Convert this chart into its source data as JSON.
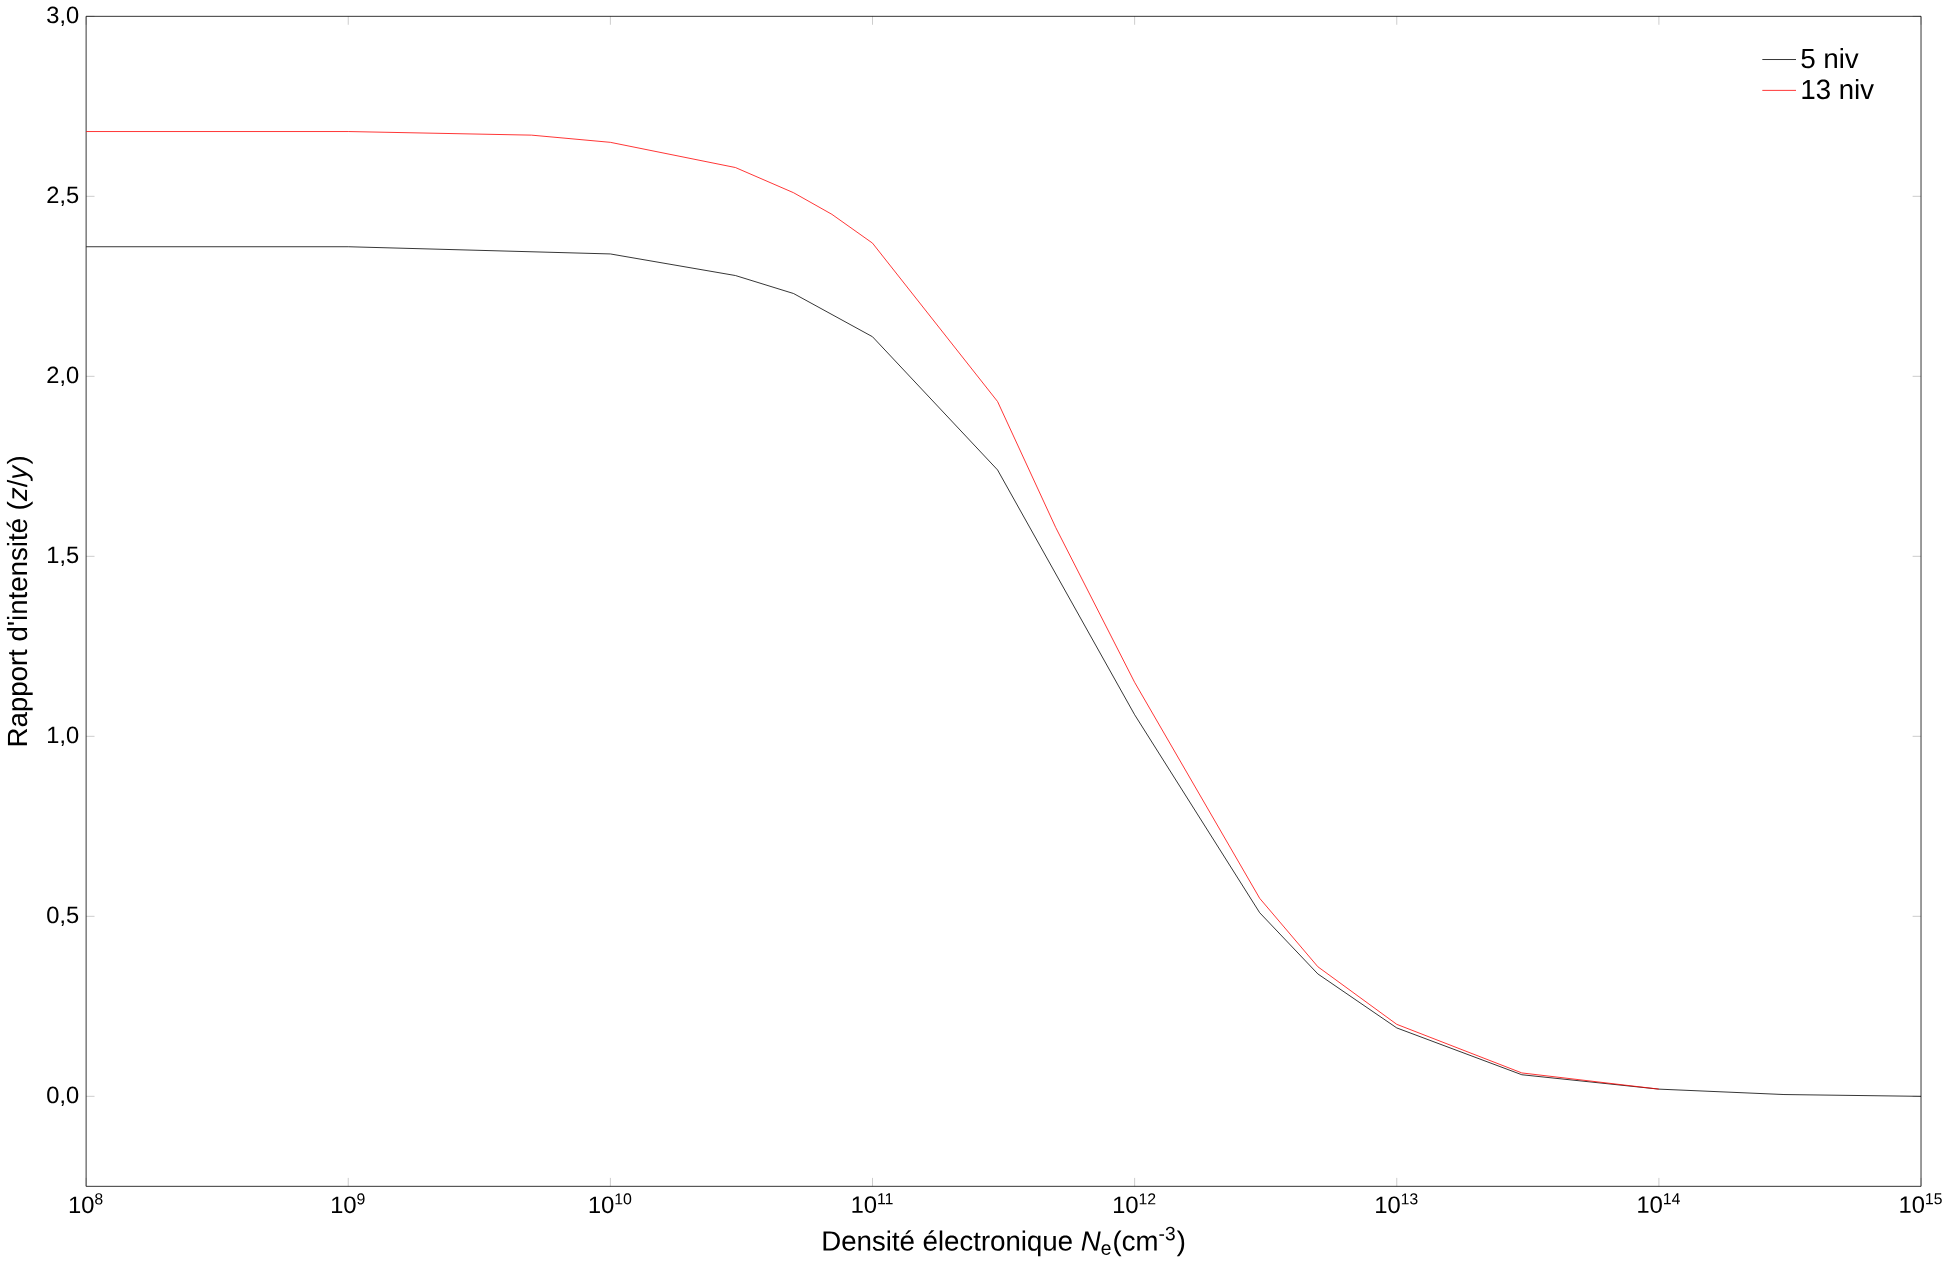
{
  "chart_data": {
    "type": "line",
    "xlabel": "Densité électronique *N*$_{e}$(cm$^{-3}$)",
    "ylabel": "Rapport d'intensité (*z*/*y*)",
    "log": "x",
    "grid": false,
    "legend": "top right",
    "marker": "none",
    "line_style": "solid",
    "xlim": [
      100000000.0,
      1000000000000000.0
    ],
    "ylim": [
      -0.25,
      3.0
    ],
    "xticks": [
      {
        "value": 100000000.0,
        "label": "10$^{8}$"
      },
      {
        "value": 1000000000.0,
        "label": "10$^{9}$"
      },
      {
        "value": 10000000000.0,
        "label": "10$^{10}$"
      },
      {
        "value": 100000000000.0,
        "label": "10$^{11}$"
      },
      {
        "value": 1000000000000.0,
        "label": "10$^{12}$"
      },
      {
        "value": 10000000000000.0,
        "label": "10$^{13}$"
      },
      {
        "value": 100000000000000.0,
        "label": "10$^{14}$"
      },
      {
        "value": 1000000000000000.0,
        "label": "10$^{15}$"
      }
    ],
    "yticks": [
      {
        "value": 0,
        "label": "0,0"
      },
      {
        "value": 0.5,
        "label": "0,5"
      },
      {
        "value": 1.0,
        "label": "1,0"
      },
      {
        "value": 1.5,
        "label": "1,5"
      },
      {
        "value": 2.0,
        "label": "2,0"
      },
      {
        "value": 2.5,
        "label": "2,5"
      },
      {
        "value": 3.0,
        "label": "3,0"
      }
    ],
    "series": [
      {
        "name": "5 niv",
        "color": "#000000",
        "x": [
          100000000.0,
          1000000000.0,
          10000000000.0,
          30000000000.0,
          50000000000.0,
          100000000000.0,
          300000000000.0,
          1000000000000.0,
          3000000000000.0,
          5000000000000.0,
          10000000000000.0,
          30000000000000.0,
          100000000000000.0,
          300000000000000.0,
          1000000000000000.0
        ],
        "values": [
          2.36,
          2.36,
          2.34,
          2.28,
          2.23,
          2.11,
          1.74,
          1.06,
          0.51,
          0.34,
          0.19,
          0.06,
          0.02,
          0.005,
          0.0
        ]
      },
      {
        "name": "13 niv",
        "color": "#ff0000",
        "x": [
          100000000.0,
          1000000000.0,
          5000000000.0,
          10000000000.0,
          30000000000.0,
          50000000000.0,
          70000000000.0,
          100000000000.0,
          300000000000.0,
          500000000000.0,
          1000000000000.0,
          3000000000000.0,
          5000000000000.0,
          10000000000000.0,
          30000000000000.0,
          100000000000000.0
        ],
        "values": [
          2.68,
          2.68,
          2.67,
          2.65,
          2.58,
          2.51,
          2.45,
          2.37,
          1.93,
          1.58,
          1.15,
          0.55,
          0.36,
          0.2,
          0.065,
          0.02
        ]
      }
    ]
  }
}
